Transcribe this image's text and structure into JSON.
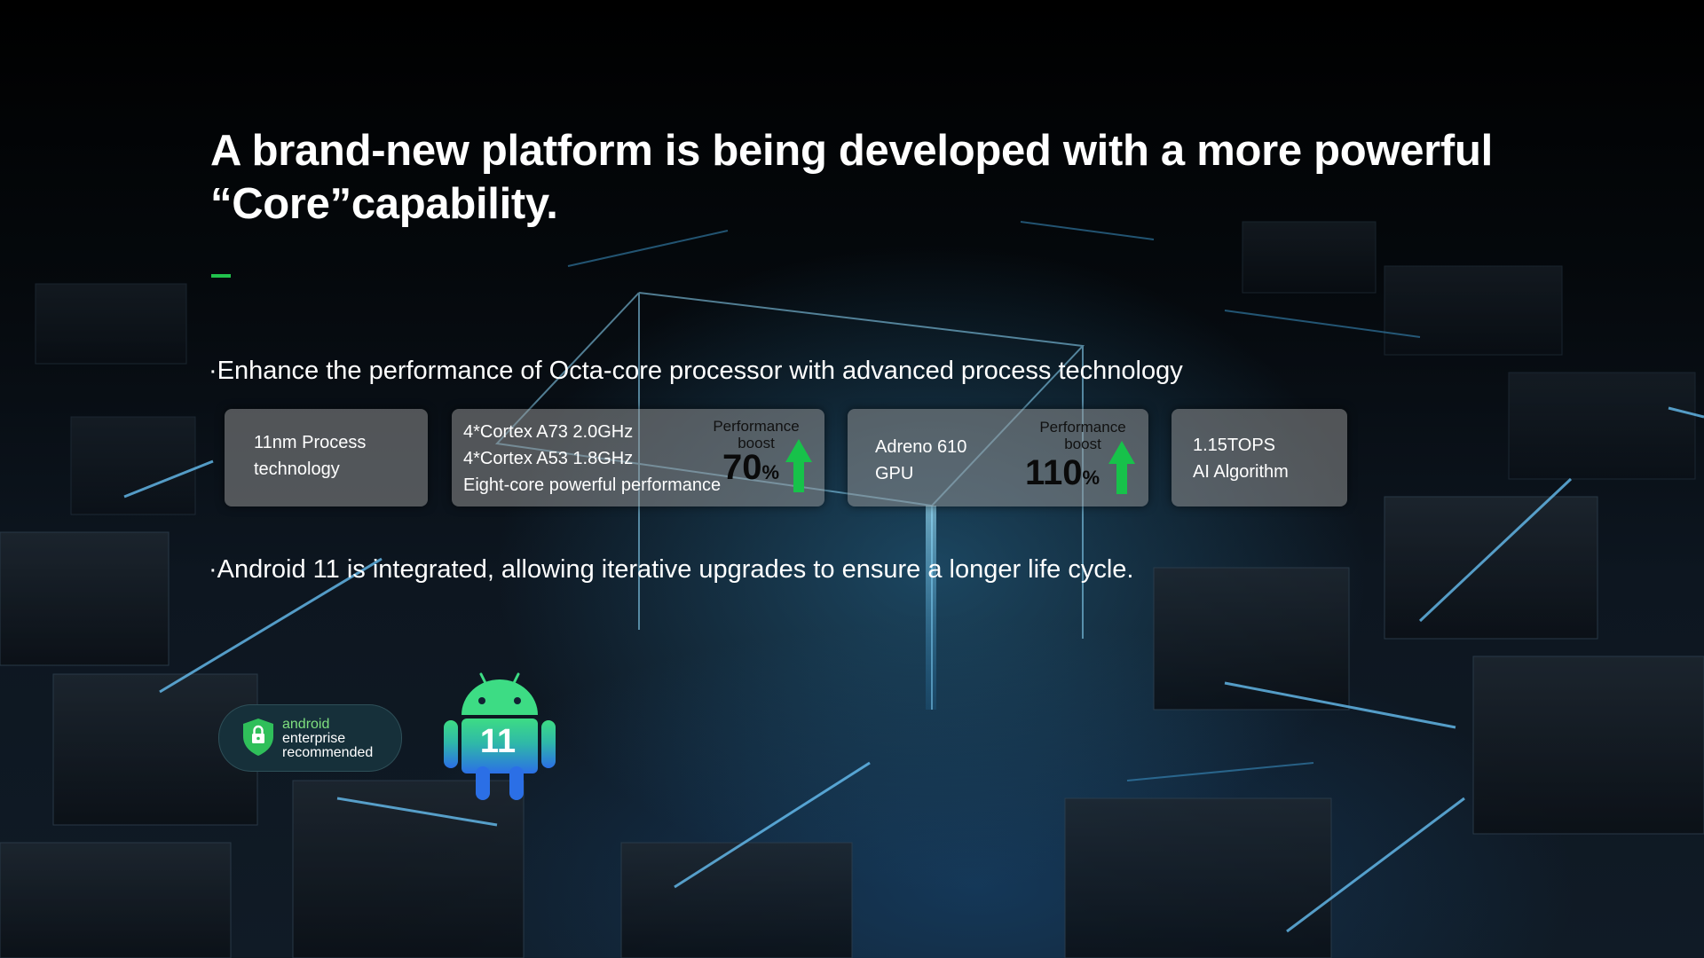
{
  "headline": {
    "line1": "A brand-new platform is being developed with a more powerful",
    "line2": "“Core”capability."
  },
  "colors": {
    "accent": "#21c24c",
    "card_bg": "#969696",
    "boost_arrow": "#17c24a"
  },
  "bullets": [
    "·Enhance the performance of Octa-core processor with advanced process technology",
    "·Android 11 is integrated, allowing iterative upgrades to ensure a longer life cycle."
  ],
  "cards": [
    {
      "lines": [
        "11nm Process",
        "technology"
      ]
    },
    {
      "lines": [
        "4*Cortex A73 2.0GHz",
        "4*Cortex A53 1.8GHz",
        "Eight-core powerful performance"
      ],
      "boost": {
        "label_line1": "Performance",
        "label_line2": "boost",
        "value": "70",
        "unit": "%"
      }
    },
    {
      "lines": [
        "Adreno 610",
        "GPU"
      ],
      "boost": {
        "label_line1": "Performance",
        "label_line2": "boost",
        "value": "110",
        "unit": "%"
      }
    },
    {
      "lines": [
        "1.15TOPS",
        "AI Algorithm"
      ]
    }
  ],
  "badges": {
    "enterprise": {
      "icon": "shield-lock-icon",
      "line1": "android",
      "line2": "enterprise",
      "line3": "recommended"
    },
    "android_version": {
      "icon": "android-robot-icon",
      "number": "11"
    }
  }
}
